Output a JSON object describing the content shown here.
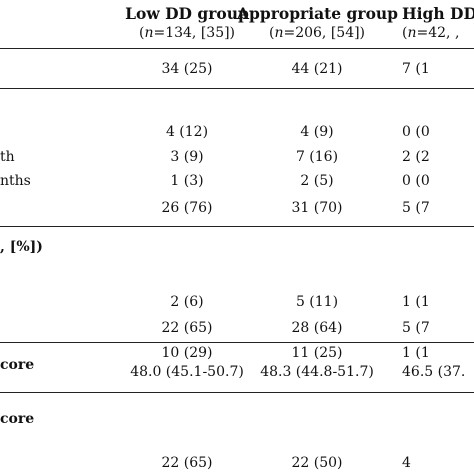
{
  "header": {
    "columns": [
      {
        "title": "Low DD group",
        "n_label": "n",
        "n_value": "=134, [35])"
      },
      {
        "title": "Appropriate group",
        "n_label": "n",
        "n_value": "=206, [54])"
      },
      {
        "title": "High DD",
        "n_label": "n",
        "n_value": "=42, ,"
      }
    ],
    "open_paren": "("
  },
  "rows": [
    {
      "label": "",
      "values": [
        "34 (25)",
        "44 (21)",
        "7 (1"
      ]
    },
    {
      "label": "",
      "values": [
        "4 (12)",
        "4 (9)",
        "0 (0"
      ]
    },
    {
      "label": "th",
      "values": [
        "3 (9)",
        "7 (16)",
        "2 (2"
      ]
    },
    {
      "label": "nths",
      "values": [
        "1 (3)",
        "2 (5)",
        "0 (0"
      ]
    },
    {
      "label": "",
      "values": [
        "26 (76)",
        "31 (70)",
        "5 (7"
      ]
    },
    {
      "label": ", [%])",
      "values": [
        "",
        "",
        ""
      ]
    },
    {
      "label": "",
      "values": [
        "2 (6)",
        "5 (11)",
        "1 (1"
      ]
    },
    {
      "label": "",
      "values": [
        "22 (65)",
        "28 (64)",
        "5 (7"
      ]
    },
    {
      "label": "",
      "values": [
        "10 (29)",
        "11 (25)",
        "1 (1"
      ]
    },
    {
      "label": "core",
      "values": [
        "48.0 (45.1-50.7)",
        "48.3 (44.8-51.7)",
        "46.5 (37."
      ]
    },
    {
      "label": "core",
      "values": [
        "",
        "",
        ""
      ]
    },
    {
      "label": "",
      "values": [
        "22 (65)",
        "22 (50)",
        "4"
      ]
    }
  ]
}
